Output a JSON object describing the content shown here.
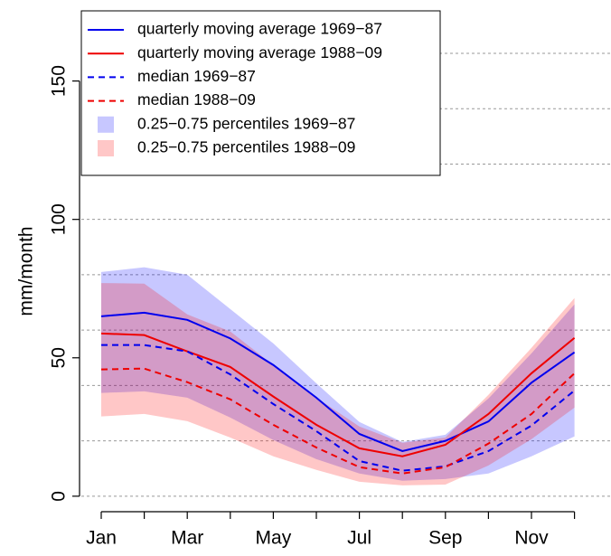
{
  "chart_data": {
    "type": "line",
    "y_label": "mm/month",
    "categories": [
      "Jan",
      null,
      "Mar",
      null,
      "May",
      null,
      "Jul",
      null,
      "Sep",
      null,
      "Nov",
      null
    ],
    "ylim": [
      -5.6,
      176
    ],
    "yticks": [
      0,
      50,
      100,
      150
    ],
    "ygrid": [
      0,
      20,
      40,
      60,
      80,
      100,
      120,
      140,
      160
    ],
    "grid": true,
    "legend": "top-left",
    "series": [
      {
        "name": "quarterly moving average 1969−87",
        "color": "#0000ee",
        "dash": false,
        "values": [
          65,
          66.3,
          63.7,
          57,
          47.4,
          35.6,
          22.5,
          16.3,
          20,
          27,
          41,
          52
        ]
      },
      {
        "name": "quarterly moving average 1988−09",
        "color": "#ee0000",
        "dash": false,
        "values": [
          58.8,
          58.2,
          52.3,
          46.7,
          36,
          25.8,
          17.3,
          14.4,
          18.6,
          29.7,
          44.4,
          57.2
        ]
      },
      {
        "name": "median 1969−87",
        "color": "#0000ee",
        "dash": true,
        "values": [
          54.6,
          54.6,
          52.3,
          44,
          33.3,
          23.5,
          12.7,
          9.2,
          10.8,
          16.3,
          25.5,
          38.2
        ]
      },
      {
        "name": "median 1988−09",
        "color": "#ee0000",
        "dash": true,
        "values": [
          45.8,
          46.1,
          41.2,
          35,
          25.8,
          17.6,
          10.5,
          8.2,
          10.5,
          19,
          29.7,
          44.4
        ]
      }
    ],
    "bands": [
      {
        "name": "0.25−0.75 percentiles 1969−87",
        "color": "#0000ff",
        "upper": [
          81,
          82.7,
          80,
          67.6,
          55.2,
          40.8,
          26.8,
          19.6,
          22.2,
          35.3,
          51.6,
          69.3
        ],
        "lower": [
          37.3,
          37.9,
          35.6,
          28.4,
          20.3,
          13.4,
          8.2,
          5.6,
          6.2,
          8.2,
          14.4,
          21.6
        ]
      },
      {
        "name": "0.25−0.75 percentiles 1988−09",
        "color": "#ff0000",
        "upper": [
          77,
          76.8,
          65.7,
          59.5,
          47.4,
          35.6,
          25.2,
          19.3,
          21.2,
          36.6,
          53.6,
          71.6
        ],
        "lower": [
          28.8,
          29.7,
          27.1,
          21.2,
          14.4,
          9.5,
          5.2,
          3.9,
          4.2,
          11.1,
          20.6,
          32
        ]
      }
    ]
  }
}
